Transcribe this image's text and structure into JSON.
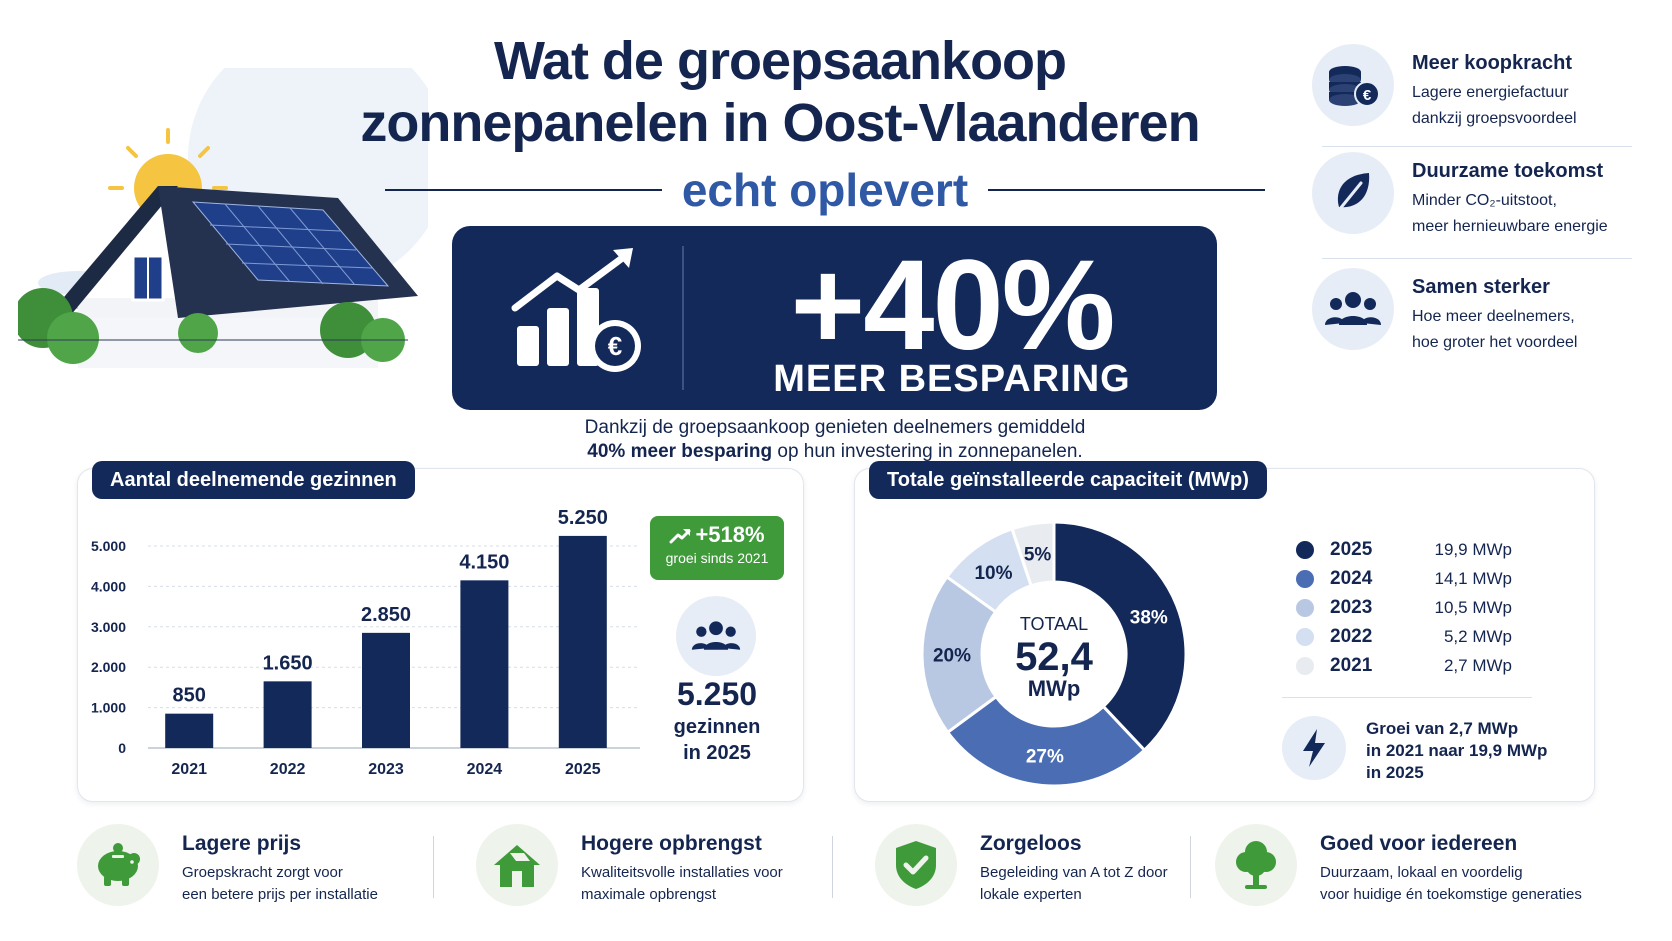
{
  "hero": {
    "title_line1": "Wat de groepsaankoop",
    "title_line2": "zonnepanelen in Oost-Vlaanderen",
    "subtitle": "echt oplevert",
    "big_value": "+40%",
    "big_label": "MEER BESPARING",
    "desc_line1": "Dankzij de groepsaankoop genieten deelnemers gemiddeld",
    "desc_line2_bold": "40% meer besparing",
    "desc_line2_rest": " op hun investering in zonnepanelen."
  },
  "side_benefits": [
    {
      "title": "Meer koopkracht",
      "line1": "Lagere energiefactuur",
      "line2": "dankzij groepsvoordeel",
      "icon": "coins-euro-icon"
    },
    {
      "title": "Duurzame toekomst",
      "line1": "Minder CO₂-uitstoot,",
      "line2": "meer hernieuwbare energie",
      "icon": "leaf-icon"
    },
    {
      "title": "Samen sterker",
      "line1": "Hoe meer deelnemers,",
      "line2": "hoe groter het voordeel",
      "icon": "people-group-icon"
    }
  ],
  "households_panel": {
    "title": "Aantal deelnemende gezinnen",
    "growth_value": "+518%",
    "growth_label": "groei sinds 2021",
    "total_count": "5.250",
    "total_label1": "gezinnen",
    "total_label2": "in 2025"
  },
  "capacity_panel": {
    "title": "Totale geïnstalleerde capaciteit (MWp)",
    "center_label": "TOTAAL",
    "center_value": "52,4",
    "center_unit": "MWp",
    "growth_note_line1": "Groei van 2,7 MWp",
    "growth_note_line2": "in 2021 naar 19,9 MWp",
    "growth_note_line3": "in 2025"
  },
  "chart_data": [
    {
      "type": "bar",
      "title": "Aantal deelnemende gezinnen",
      "categories": [
        "2021",
        "2022",
        "2023",
        "2024",
        "2025"
      ],
      "values": [
        850,
        1650,
        2850,
        4150,
        5250
      ],
      "value_labels": [
        "850",
        "1.650",
        "2.850",
        "4.150",
        "5.250"
      ],
      "ylim": [
        0,
        5000
      ],
      "yticks": [
        0,
        1000,
        2000,
        3000,
        4000,
        5000
      ],
      "ytick_labels": [
        "0",
        "1.000",
        "2.000",
        "3.000",
        "4.000",
        "5.000"
      ],
      "grid": true,
      "color": "#13295a"
    },
    {
      "type": "pie",
      "title": "Totale geïnstalleerde capaciteit (MWp)",
      "donut": true,
      "slices": [
        {
          "year": "2025",
          "value": 19.9,
          "value_label": "19,9 MWp",
          "pct_label": "38%",
          "color": "#13295a"
        },
        {
          "year": "2024",
          "value": 14.1,
          "value_label": "14,1 MWp",
          "pct_label": "27%",
          "color": "#4a6db3"
        },
        {
          "year": "2023",
          "value": 10.5,
          "value_label": "10,5 MWp",
          "pct_label": "20%",
          "color": "#b9c8e2"
        },
        {
          "year": "2022",
          "value": 5.2,
          "value_label": "5,2 MWp",
          "pct_label": "10%",
          "color": "#d4e0f2"
        },
        {
          "year": "2021",
          "value": 2.7,
          "value_label": "2,7 MWp",
          "pct_label": "5%",
          "color": "#e8ebf0"
        }
      ],
      "legend_position": "right"
    }
  ],
  "features": [
    {
      "title": "Lagere prijs",
      "line1": "Groepskracht zorgt voor",
      "line2": "een betere prijs per installatie",
      "icon": "piggy-bank-icon"
    },
    {
      "title": "Hogere opbrengst",
      "line1": "Kwaliteitsvolle installaties voor",
      "line2": "maximale opbrengst",
      "icon": "solar-house-icon"
    },
    {
      "title": "Zorgeloos",
      "line1": "Begeleiding van A tot Z door",
      "line2": "lokale experten",
      "icon": "shield-check-icon"
    },
    {
      "title": "Goed voor iedereen",
      "line1": "Duurzaam, lokaal en voordelig",
      "line2": "voor huidige én toekomstige generaties",
      "icon": "tree-icon"
    }
  ],
  "colors": {
    "navy": "#13295a",
    "blue": "#2f58a5",
    "green": "#3f9a3a"
  }
}
